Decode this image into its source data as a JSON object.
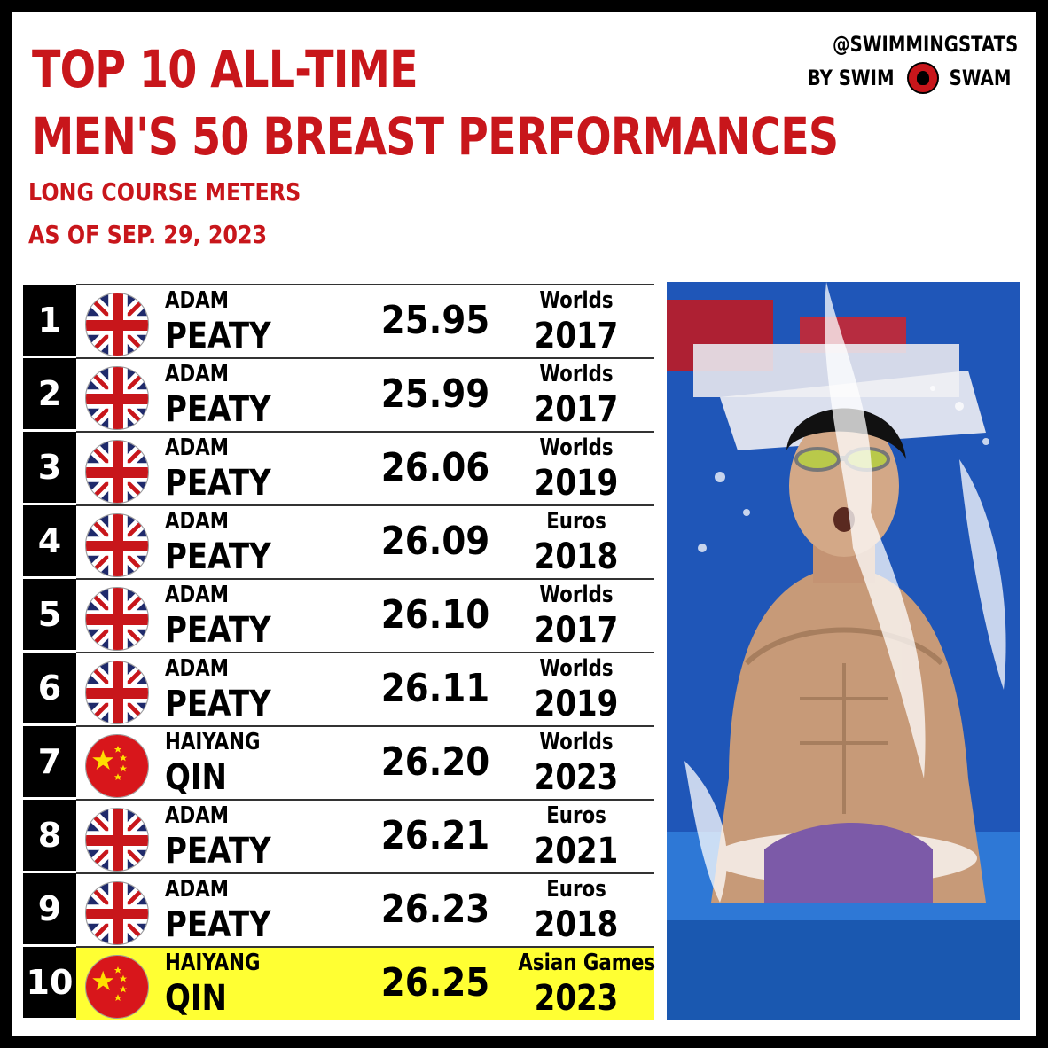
{
  "header": {
    "title_line1": "TOP 10 ALL-TIME",
    "title_line2": "MEN'S 50 BREAST PERFORMANCES",
    "subtitle_line1": "LONG COURSE METERS",
    "subtitle_line2": "AS OF SEP. 29, 2023"
  },
  "brand": {
    "handle": "@SWIMMINGSTATS",
    "by_left": "BY SWIM",
    "by_right": "SWAM"
  },
  "rows": [
    {
      "rank": "1",
      "flag": "gb-flag-icon",
      "first": "ADAM",
      "last": "PEATY",
      "time": "25.95",
      "meet": "Worlds",
      "year": "2017"
    },
    {
      "rank": "2",
      "flag": "gb-flag-icon",
      "first": "ADAM",
      "last": "PEATY",
      "time": "25.99",
      "meet": "Worlds",
      "year": "2017"
    },
    {
      "rank": "3",
      "flag": "gb-flag-icon",
      "first": "ADAM",
      "last": "PEATY",
      "time": "26.06",
      "meet": "Worlds",
      "year": "2019"
    },
    {
      "rank": "4",
      "flag": "gb-flag-icon",
      "first": "ADAM",
      "last": "PEATY",
      "time": "26.09",
      "meet": "Euros",
      "year": "2018"
    },
    {
      "rank": "5",
      "flag": "gb-flag-icon",
      "first": "ADAM",
      "last": "PEATY",
      "time": "26.10",
      "meet": "Worlds",
      "year": "2017"
    },
    {
      "rank": "6",
      "flag": "gb-flag-icon",
      "first": "ADAM",
      "last": "PEATY",
      "time": "26.11",
      "meet": "Worlds",
      "year": "2019"
    },
    {
      "rank": "7",
      "flag": "cn-flag-icon",
      "first": "HAIYANG",
      "last": "QIN",
      "time": "26.20",
      "meet": "Worlds",
      "year": "2023"
    },
    {
      "rank": "8",
      "flag": "gb-flag-icon",
      "first": "ADAM",
      "last": "PEATY",
      "time": "26.21",
      "meet": "Euros",
      "year": "2021"
    },
    {
      "rank": "9",
      "flag": "gb-flag-icon",
      "first": "ADAM",
      "last": "PEATY",
      "time": "26.23",
      "meet": "Euros",
      "year": "2018"
    },
    {
      "rank": "10",
      "flag": "cn-flag-icon",
      "first": "HAIYANG",
      "last": "QIN",
      "time": "26.25",
      "meet": "Asian Games",
      "year": "2023",
      "highlight": true
    }
  ],
  "colors": {
    "title_red": "#c8161b",
    "highlight_yellow": "#ffff33",
    "rank_bg": "#000000"
  },
  "photo": {
    "icon": "swimmer-photo"
  }
}
